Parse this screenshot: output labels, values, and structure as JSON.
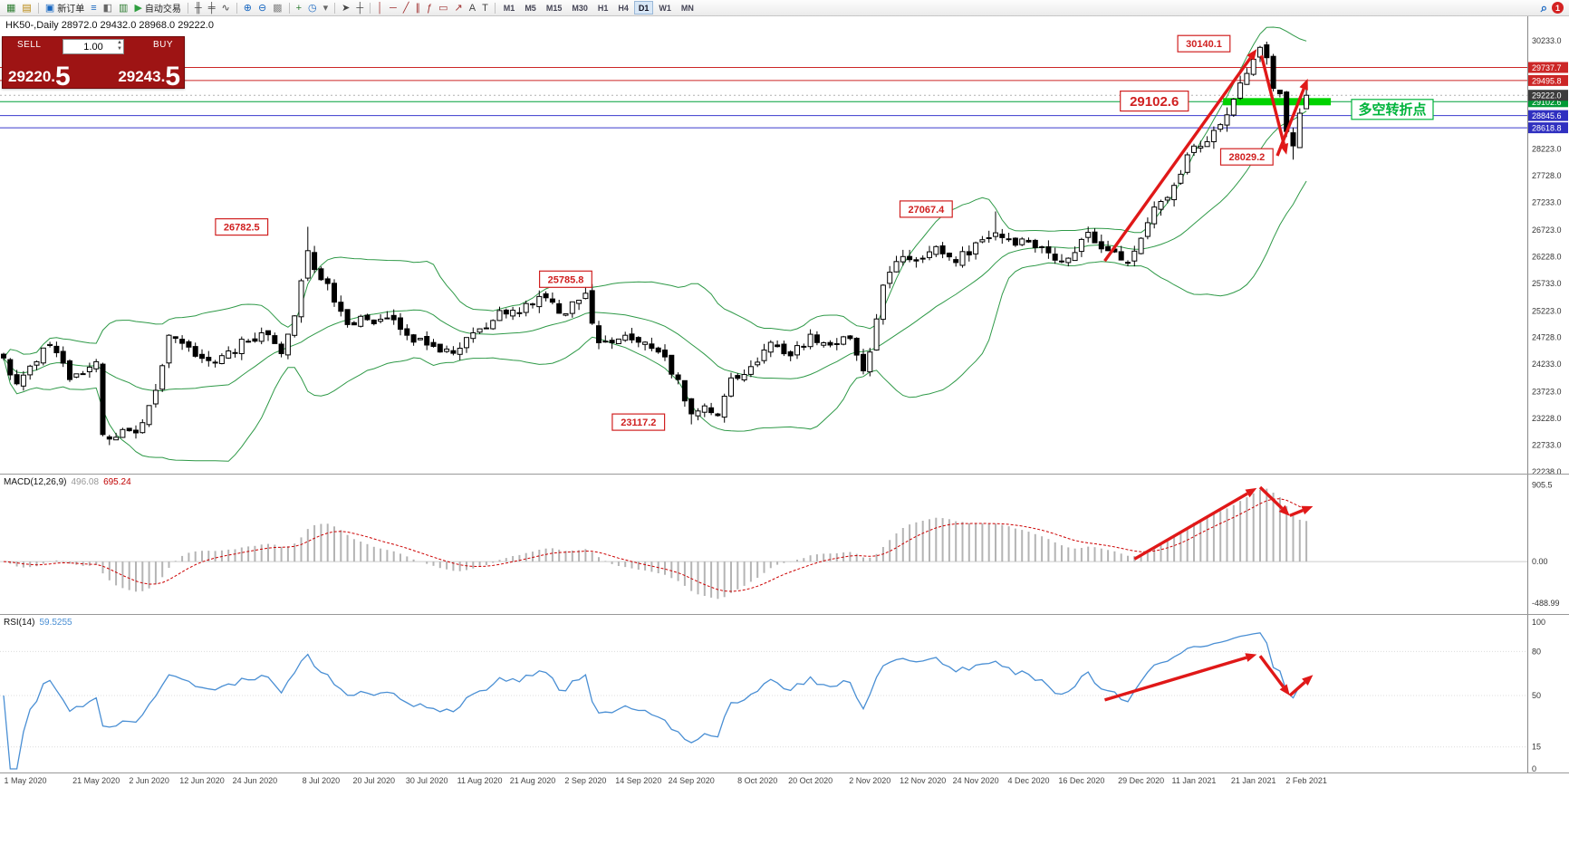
{
  "toolbar": {
    "groups": [
      [
        {
          "name": "new-chart-icon",
          "glyph": "▦",
          "color": "#2e7d32"
        },
        {
          "name": "profiles-icon",
          "glyph": "▤",
          "color": "#b8860b"
        }
      ],
      [
        {
          "name": "new-order-button",
          "glyph": "▣",
          "color": "#1565c0",
          "label": "新订单"
        },
        {
          "name": "market-watch-icon",
          "glyph": "≡",
          "color": "#1565c0"
        },
        {
          "name": "data-window-icon",
          "glyph": "◧",
          "color": "#666666"
        },
        {
          "name": "strategy-tester-icon",
          "glyph": "▥",
          "color": "#2e7d32"
        },
        {
          "name": "auto-trading-button",
          "glyph": "▶",
          "color": "#2e9e3f",
          "label": "自动交易"
        }
      ],
      [
        {
          "name": "bar-chart-icon",
          "glyph": "╫",
          "color": "#444444"
        },
        {
          "name": "candlestick-chart-icon",
          "glyph": "╪",
          "color": "#444444"
        },
        {
          "name": "line-chart-icon",
          "glyph": "∿",
          "color": "#444444"
        }
      ],
      [
        {
          "name": "zoom-in-icon",
          "glyph": "⊕",
          "color": "#1565c0"
        },
        {
          "name": "zoom-out-icon",
          "glyph": "⊖",
          "color": "#1565c0"
        },
        {
          "name": "tile-windows-icon",
          "glyph": "▩",
          "color": "#888888"
        }
      ],
      [
        {
          "name": "indicators-icon",
          "glyph": "+",
          "color": "#2e7d32"
        },
        {
          "name": "periods-icon",
          "glyph": "◷",
          "color": "#1565c0"
        },
        {
          "name": "templates-icon",
          "glyph": "▾",
          "color": "#666666"
        }
      ],
      [
        {
          "name": "cursor-icon",
          "glyph": "➤",
          "color": "#444444"
        },
        {
          "name": "crosshair-icon",
          "glyph": "┼",
          "color": "#444444"
        }
      ],
      [
        {
          "name": "vertical-line-icon",
          "glyph": "│",
          "color": "#a03030"
        },
        {
          "name": "horizontal-line-icon",
          "glyph": "─",
          "color": "#a03030"
        },
        {
          "name": "trendline-icon",
          "glyph": "╱",
          "color": "#a03030"
        },
        {
          "name": "channel-icon",
          "glyph": "∥",
          "color": "#a03030"
        },
        {
          "name": "fibonacci-icon",
          "glyph": "ƒ",
          "color": "#a03030"
        },
        {
          "name": "shapes-icon",
          "glyph": "▭",
          "color": "#a03030"
        },
        {
          "name": "arrows-icon",
          "glyph": "↗",
          "color": "#a03030"
        },
        {
          "name": "text-icon",
          "glyph": "A",
          "color": "#444444"
        },
        {
          "name": "label-icon",
          "glyph": "T",
          "color": "#444444"
        }
      ]
    ],
    "timeframes": {
      "items": [
        "M1",
        "M5",
        "M15",
        "M30",
        "H1",
        "H4",
        "D1",
        "W1",
        "MN"
      ],
      "active": "D1"
    },
    "search_glyph": "⌕",
    "badge": "1"
  },
  "chart": {
    "title": "HK50-,Daily 28972.0 29432.0 28968.0 29222.0"
  },
  "trade": {
    "sell_label": "SELL",
    "sell_price_main": "29220.",
    "sell_price_big": "5",
    "volume": "1.00",
    "spinner_up": "▲",
    "spinner_down": "▼",
    "buy_label": "BUY",
    "buy_price_main": "29243.",
    "buy_price_big": "5"
  },
  "chart_data": {
    "type": "candlestick",
    "symbol": "HK50-",
    "period": "Daily",
    "ohlc": {
      "open": 28972.0,
      "high": 29432.0,
      "low": 28968.0,
      "close": 29222.0
    },
    "y_axis": {
      "ticks": [
        "30233.0",
        "28223.0",
        "27728.0",
        "27233.0",
        "26723.0",
        "26228.0",
        "25733.0",
        "25223.0",
        "24728.0",
        "24233.0",
        "23723.0",
        "23228.0",
        "22733.0",
        "22238.0"
      ],
      "render_range": [
        22204,
        30687
      ]
    },
    "x_axis": {
      "labels": [
        [
          "1 May 2020",
          0
        ],
        [
          "21 May 2020",
          14
        ],
        [
          "2 Jun 2020",
          22
        ],
        [
          "12 Jun 2020",
          30
        ],
        [
          "24 Jun 2020",
          38
        ],
        [
          "8 Jul 2020",
          48
        ],
        [
          "20 Jul 2020",
          56
        ],
        [
          "30 Jul 2020",
          64
        ],
        [
          "11 Aug 2020",
          72
        ],
        [
          "21 Aug 2020",
          80
        ],
        [
          "2 Sep 2020",
          88
        ],
        [
          "14 Sep 2020",
          96
        ],
        [
          "24 Sep 2020",
          104
        ],
        [
          "8 Oct 2020",
          114
        ],
        [
          "20 Oct 2020",
          122
        ],
        [
          "2 Nov 2020",
          131
        ],
        [
          "12 Nov 2020",
          139
        ],
        [
          "24 Nov 2020",
          147
        ],
        [
          "4 Dec 2020",
          155
        ],
        [
          "16 Dec 2020",
          163
        ],
        [
          "29 Dec 2020",
          172
        ],
        [
          "11 Jan 2021",
          180
        ],
        [
          "21 Jan 2021",
          189
        ],
        [
          "2 Feb 2021",
          197
        ]
      ]
    },
    "candles": {
      "count": 198,
      "anchors": [
        [
          0,
          24350
        ],
        [
          2,
          23870
        ],
        [
          5,
          24280
        ],
        [
          7,
          24600
        ],
        [
          10,
          23950
        ],
        [
          13,
          24180
        ],
        [
          14,
          24280
        ],
        [
          15,
          22930
        ],
        [
          17,
          22880
        ],
        [
          19,
          23000
        ],
        [
          20,
          22960
        ],
        [
          23,
          23750
        ],
        [
          25,
          24770
        ],
        [
          28,
          24550
        ],
        [
          31,
          24300
        ],
        [
          34,
          24480
        ],
        [
          37,
          24660
        ],
        [
          40,
          24780
        ],
        [
          42,
          24430
        ],
        [
          44,
          25130
        ],
        [
          46,
          26340
        ],
        [
          47,
          25990
        ],
        [
          49,
          25730
        ],
        [
          52,
          24970
        ],
        [
          55,
          25060
        ],
        [
          58,
          25090
        ],
        [
          61,
          24770
        ],
        [
          64,
          24590
        ],
        [
          66,
          24460
        ],
        [
          69,
          24530
        ],
        [
          72,
          24890
        ],
        [
          75,
          25230
        ],
        [
          78,
          25180
        ],
        [
          81,
          25490
        ],
        [
          84,
          25180
        ],
        [
          87,
          25420
        ],
        [
          88,
          25550
        ],
        [
          90,
          24630
        ],
        [
          93,
          24700
        ],
        [
          96,
          24640
        ],
        [
          99,
          24460
        ],
        [
          102,
          23950
        ],
        [
          104,
          23311
        ],
        [
          106,
          23460
        ],
        [
          108,
          23280
        ],
        [
          110,
          23980
        ],
        [
          113,
          24190
        ],
        [
          116,
          24640
        ],
        [
          119,
          24390
        ],
        [
          122,
          24790
        ],
        [
          125,
          24590
        ],
        [
          128,
          24710
        ],
        [
          130,
          24110
        ],
        [
          131,
          24460
        ],
        [
          133,
          25700
        ],
        [
          136,
          26230
        ],
        [
          139,
          26200
        ],
        [
          141,
          26415
        ],
        [
          144,
          26120
        ],
        [
          147,
          26486
        ],
        [
          150,
          26670
        ],
        [
          152,
          26560
        ],
        [
          155,
          26500
        ],
        [
          158,
          26300
        ],
        [
          161,
          26200
        ],
        [
          164,
          26680
        ],
        [
          167,
          26340
        ],
        [
          170,
          26120
        ],
        [
          172,
          26570
        ],
        [
          174,
          27150
        ],
        [
          177,
          27550
        ],
        [
          180,
          28280
        ],
        [
          183,
          28570
        ],
        [
          185,
          28860
        ],
        [
          187,
          29450
        ],
        [
          189,
          29890
        ],
        [
          190,
          30110
        ],
        [
          191,
          29920
        ],
        [
          192,
          29350
        ],
        [
          193,
          29250
        ],
        [
          194,
          28550
        ],
        [
          195,
          28283
        ],
        [
          196,
          28890
        ],
        [
          197,
          29222
        ]
      ],
      "extremes": {
        "46": {
          "h": 26782.5
        },
        "88": {
          "h": 25785.8
        },
        "104": {
          "l": 23117.2
        },
        "150": {
          "h": 27067.4
        },
        "190": {
          "h": 30140.1
        },
        "195": {
          "l": 28029.2
        },
        "197": {
          "o": 28972.0,
          "h": 29432.0,
          "l": 28968.0,
          "c": 29222.0
        }
      }
    },
    "levels": [
      {
        "price": 29737.7,
        "color": "#cc2626",
        "tag": "29737.7",
        "tag_bg": "#cc2626"
      },
      {
        "price": 29495.8,
        "color": "#cc2626",
        "tag": "29495.8",
        "tag_bg": "#cc2626"
      },
      {
        "price": 29102.6,
        "color": "#00a03a",
        "tag": "29102.6",
        "tag_bg": "#009a36",
        "thick_segment": [
          184.4,
          200.7
        ]
      },
      {
        "price": 28845.6,
        "color": "#3a3ace",
        "tag": "28845.6",
        "tag_bg": "#3030c0"
      },
      {
        "price": 28618.8,
        "color": "#3a3ace",
        "tag": "28618.8",
        "tag_bg": "#3030c0"
      }
    ],
    "current_price_tag": {
      "price": 29222.0,
      "text": "29222.0",
      "bg": "#3c3c3c"
    },
    "annotations": [
      {
        "text": "26782.5",
        "i": 36,
        "p": 26780,
        "size": 11,
        "color": "#d02020"
      },
      {
        "text": "25785.8",
        "i": 85,
        "p": 25810,
        "size": 11,
        "color": "#d02020"
      },
      {
        "text": "23117.2",
        "i": 96,
        "p": 23160,
        "size": 11,
        "color": "#d02020"
      },
      {
        "text": "27067.4",
        "i": 139.5,
        "p": 27110,
        "size": 11,
        "color": "#d02020"
      },
      {
        "text": "30140.1",
        "i": 181.5,
        "p": 30180,
        "size": 11,
        "color": "#d02020"
      },
      {
        "text": "28029.2",
        "i": 188,
        "p": 28080,
        "size": 11,
        "color": "#d02020"
      },
      {
        "text": "29102.6",
        "i": 174,
        "p": 29115,
        "size": 15,
        "color": "#d02020"
      },
      {
        "text": "多空转折点",
        "i": 210,
        "p": 28960,
        "size": 15,
        "color": "#00b43c",
        "cjk": true
      }
    ],
    "arrows": {
      "main": [
        {
          "from": [
            166.5,
            26150
          ],
          "to": [
            189.5,
            30080
          ]
        },
        {
          "from": [
            190.2,
            29960
          ],
          "to": [
            194.0,
            28120
          ]
        },
        {
          "from": [
            192.6,
            28100
          ],
          "to": [
            197.2,
            29530
          ]
        }
      ],
      "macd": [
        {
          "from": [
            171,
            30
          ],
          "to": [
            189.5,
            870
          ]
        },
        {
          "from": [
            190,
            880
          ],
          "to": [
            194.5,
            540
          ]
        },
        {
          "from": [
            194.5,
            545
          ],
          "to": [
            198,
            655
          ]
        }
      ],
      "rsi": [
        {
          "from": [
            166.5,
            47
          ],
          "to": [
            189.5,
            78
          ]
        },
        {
          "from": [
            190,
            77
          ],
          "to": [
            194.5,
            50
          ]
        },
        {
          "from": [
            194.5,
            50
          ],
          "to": [
            198,
            64
          ]
        }
      ]
    },
    "indicators": {
      "bollinger": {
        "period": 20,
        "deviation": 2,
        "color": "#2e9947"
      },
      "macd": {
        "label": "MACD(12,26,9)",
        "value_main": "496.08",
        "value_signal": "695.24",
        "ticks": [
          [
            "905.5",
            905.5
          ],
          [
            "0.00",
            0
          ],
          [
            "-488.99",
            -488.99
          ]
        ],
        "range": [
          -620,
          1030
        ],
        "histogram_color": "#b4b4b4",
        "signal_color": "#cc0000"
      },
      "rsi": {
        "label": "RSI(14)",
        "value": "59.5255",
        "ticks": [
          [
            "100",
            100
          ],
          [
            "80",
            80
          ],
          [
            "50",
            50
          ],
          [
            "15",
            15
          ],
          [
            "0",
            0
          ]
        ],
        "levels": [
          80,
          50,
          15
        ],
        "line_color": "#4a8fd4"
      }
    }
  }
}
